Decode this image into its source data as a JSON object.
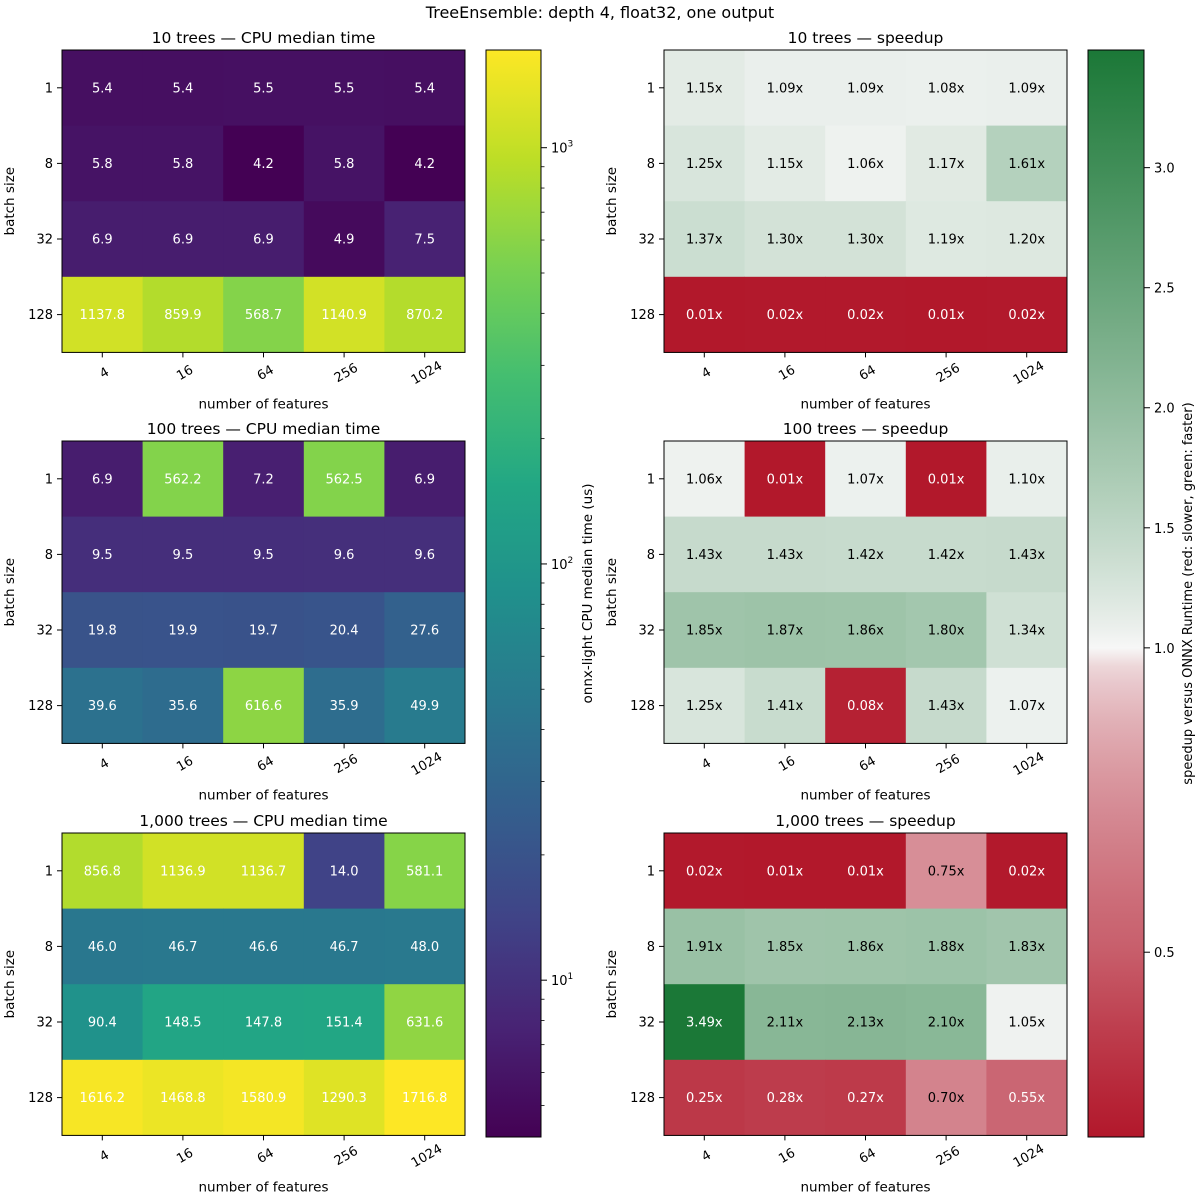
{
  "figure": {
    "suptitle": "TreeEnsemble: depth 4, float32, one output"
  },
  "colorbars": {
    "time": {
      "label": "onnx-light CPU median time (us)",
      "scale": "log",
      "vmin": 4.2,
      "vmax": 1716.8,
      "colormap": "viridis",
      "tick_labels": [
        "10^1",
        "10^2",
        "10^3"
      ],
      "tick_values": [
        10,
        100,
        1000
      ]
    },
    "speedup": {
      "label": "speedup versus ONNX Runtime (red: slower, green: faster)",
      "scale": "symlog around 1.0",
      "vmin": 0.01,
      "vmax": 3.49,
      "center": 1.0,
      "colors": {
        "low": "#b2182b",
        "mid": "#f7f7f7",
        "high": "#1b7837"
      },
      "tick_labels": [
        "0.5",
        "1.0",
        "1.5",
        "2.0",
        "2.5",
        "3.0"
      ],
      "tick_values": [
        0.5,
        1.0,
        1.5,
        2.0,
        2.5,
        3.0
      ]
    }
  },
  "chart_data": [
    {
      "type": "heatmap",
      "title": "10 trees — CPU median time",
      "xlabel": "number of features",
      "ylabel": "batch size",
      "x": [
        "4",
        "16",
        "64",
        "256",
        "1024"
      ],
      "y": [
        "1",
        "8",
        "32",
        "128"
      ],
      "values": [
        [
          5.4,
          5.4,
          5.5,
          5.5,
          5.4
        ],
        [
          5.8,
          5.8,
          4.2,
          5.8,
          4.2
        ],
        [
          6.9,
          6.9,
          6.9,
          4.9,
          7.5
        ],
        [
          1137.8,
          859.9,
          568.7,
          1140.9,
          870.2
        ]
      ],
      "labels": [
        [
          "5.4",
          "5.4",
          "5.5",
          "5.5",
          "5.4"
        ],
        [
          "5.8",
          "5.8",
          "4.2",
          "5.8",
          "4.2"
        ],
        [
          "6.9",
          "6.9",
          "6.9",
          "4.9",
          "7.5"
        ],
        [
          "1137.8",
          "859.9",
          "568.7",
          "1140.9",
          "870.2"
        ]
      ],
      "colorbar": "time"
    },
    {
      "type": "heatmap",
      "title": "10 trees — speedup",
      "xlabel": "number of features",
      "ylabel": "batch size",
      "x": [
        "4",
        "16",
        "64",
        "256",
        "1024"
      ],
      "y": [
        "1",
        "8",
        "32",
        "128"
      ],
      "values": [
        [
          1.15,
          1.09,
          1.09,
          1.08,
          1.09
        ],
        [
          1.25,
          1.15,
          1.06,
          1.17,
          1.61
        ],
        [
          1.37,
          1.3,
          1.3,
          1.19,
          1.2
        ],
        [
          0.01,
          0.02,
          0.02,
          0.01,
          0.02
        ]
      ],
      "labels": [
        [
          "1.15x",
          "1.09x",
          "1.09x",
          "1.08x",
          "1.09x"
        ],
        [
          "1.25x",
          "1.15x",
          "1.06x",
          "1.17x",
          "1.61x"
        ],
        [
          "1.37x",
          "1.30x",
          "1.30x",
          "1.19x",
          "1.20x"
        ],
        [
          "0.01x",
          "0.02x",
          "0.02x",
          "0.01x",
          "0.02x"
        ]
      ],
      "colorbar": "speedup"
    },
    {
      "type": "heatmap",
      "title": "100 trees — CPU median time",
      "xlabel": "number of features",
      "ylabel": "batch size",
      "x": [
        "4",
        "16",
        "64",
        "256",
        "1024"
      ],
      "y": [
        "1",
        "8",
        "32",
        "128"
      ],
      "values": [
        [
          6.9,
          562.2,
          7.2,
          562.5,
          6.9
        ],
        [
          9.5,
          9.5,
          9.5,
          9.6,
          9.6
        ],
        [
          19.8,
          19.9,
          19.7,
          20.4,
          27.6
        ],
        [
          39.6,
          35.6,
          616.6,
          35.9,
          49.9
        ]
      ],
      "labels": [
        [
          "6.9",
          "562.2",
          "7.2",
          "562.5",
          "6.9"
        ],
        [
          "9.5",
          "9.5",
          "9.5",
          "9.6",
          "9.6"
        ],
        [
          "19.8",
          "19.9",
          "19.7",
          "20.4",
          "27.6"
        ],
        [
          "39.6",
          "35.6",
          "616.6",
          "35.9",
          "49.9"
        ]
      ],
      "colorbar": "time"
    },
    {
      "type": "heatmap",
      "title": "100 trees — speedup",
      "xlabel": "number of features",
      "ylabel": "batch size",
      "x": [
        "4",
        "16",
        "64",
        "256",
        "1024"
      ],
      "y": [
        "1",
        "8",
        "32",
        "128"
      ],
      "values": [
        [
          1.06,
          0.01,
          1.07,
          0.01,
          1.1
        ],
        [
          1.43,
          1.43,
          1.42,
          1.42,
          1.43
        ],
        [
          1.85,
          1.87,
          1.86,
          1.8,
          1.34
        ],
        [
          1.25,
          1.41,
          0.08,
          1.43,
          1.07
        ]
      ],
      "labels": [
        [
          "1.06x",
          "0.01x",
          "1.07x",
          "0.01x",
          "1.10x"
        ],
        [
          "1.43x",
          "1.43x",
          "1.42x",
          "1.42x",
          "1.43x"
        ],
        [
          "1.85x",
          "1.87x",
          "1.86x",
          "1.80x",
          "1.34x"
        ],
        [
          "1.25x",
          "1.41x",
          "0.08x",
          "1.43x",
          "1.07x"
        ]
      ],
      "colorbar": "speedup"
    },
    {
      "type": "heatmap",
      "title": "1,000 trees — CPU median time",
      "xlabel": "number of features",
      "ylabel": "batch size",
      "x": [
        "4",
        "16",
        "64",
        "256",
        "1024"
      ],
      "y": [
        "1",
        "8",
        "32",
        "128"
      ],
      "values": [
        [
          856.8,
          1136.9,
          1136.7,
          14.0,
          581.1
        ],
        [
          46.0,
          46.7,
          46.6,
          46.7,
          48.0
        ],
        [
          90.4,
          148.5,
          147.8,
          151.4,
          631.6
        ],
        [
          1616.2,
          1468.8,
          1580.9,
          1290.3,
          1716.8
        ]
      ],
      "labels": [
        [
          "856.8",
          "1136.9",
          "1136.7",
          "14.0",
          "581.1"
        ],
        [
          "46.0",
          "46.7",
          "46.6",
          "46.7",
          "48.0"
        ],
        [
          "90.4",
          "148.5",
          "147.8",
          "151.4",
          "631.6"
        ],
        [
          "1616.2",
          "1468.8",
          "1580.9",
          "1290.3",
          "1716.8"
        ]
      ],
      "colorbar": "time"
    },
    {
      "type": "heatmap",
      "title": "1,000 trees — speedup",
      "xlabel": "number of features",
      "ylabel": "batch size",
      "x": [
        "4",
        "16",
        "64",
        "256",
        "1024"
      ],
      "y": [
        "1",
        "8",
        "32",
        "128"
      ],
      "values": [
        [
          0.02,
          0.01,
          0.01,
          0.75,
          0.02
        ],
        [
          1.91,
          1.85,
          1.86,
          1.88,
          1.83
        ],
        [
          3.49,
          2.11,
          2.13,
          2.1,
          1.05
        ],
        [
          0.25,
          0.28,
          0.27,
          0.7,
          0.55
        ]
      ],
      "labels": [
        [
          "0.02x",
          "0.01x",
          "0.01x",
          "0.75x",
          "0.02x"
        ],
        [
          "1.91x",
          "1.85x",
          "1.86x",
          "1.88x",
          "1.83x"
        ],
        [
          "3.49x",
          "2.11x",
          "2.13x",
          "2.10x",
          "1.05x"
        ],
        [
          "0.25x",
          "0.28x",
          "0.27x",
          "0.70x",
          "0.55x"
        ]
      ],
      "colorbar": "speedup"
    }
  ]
}
